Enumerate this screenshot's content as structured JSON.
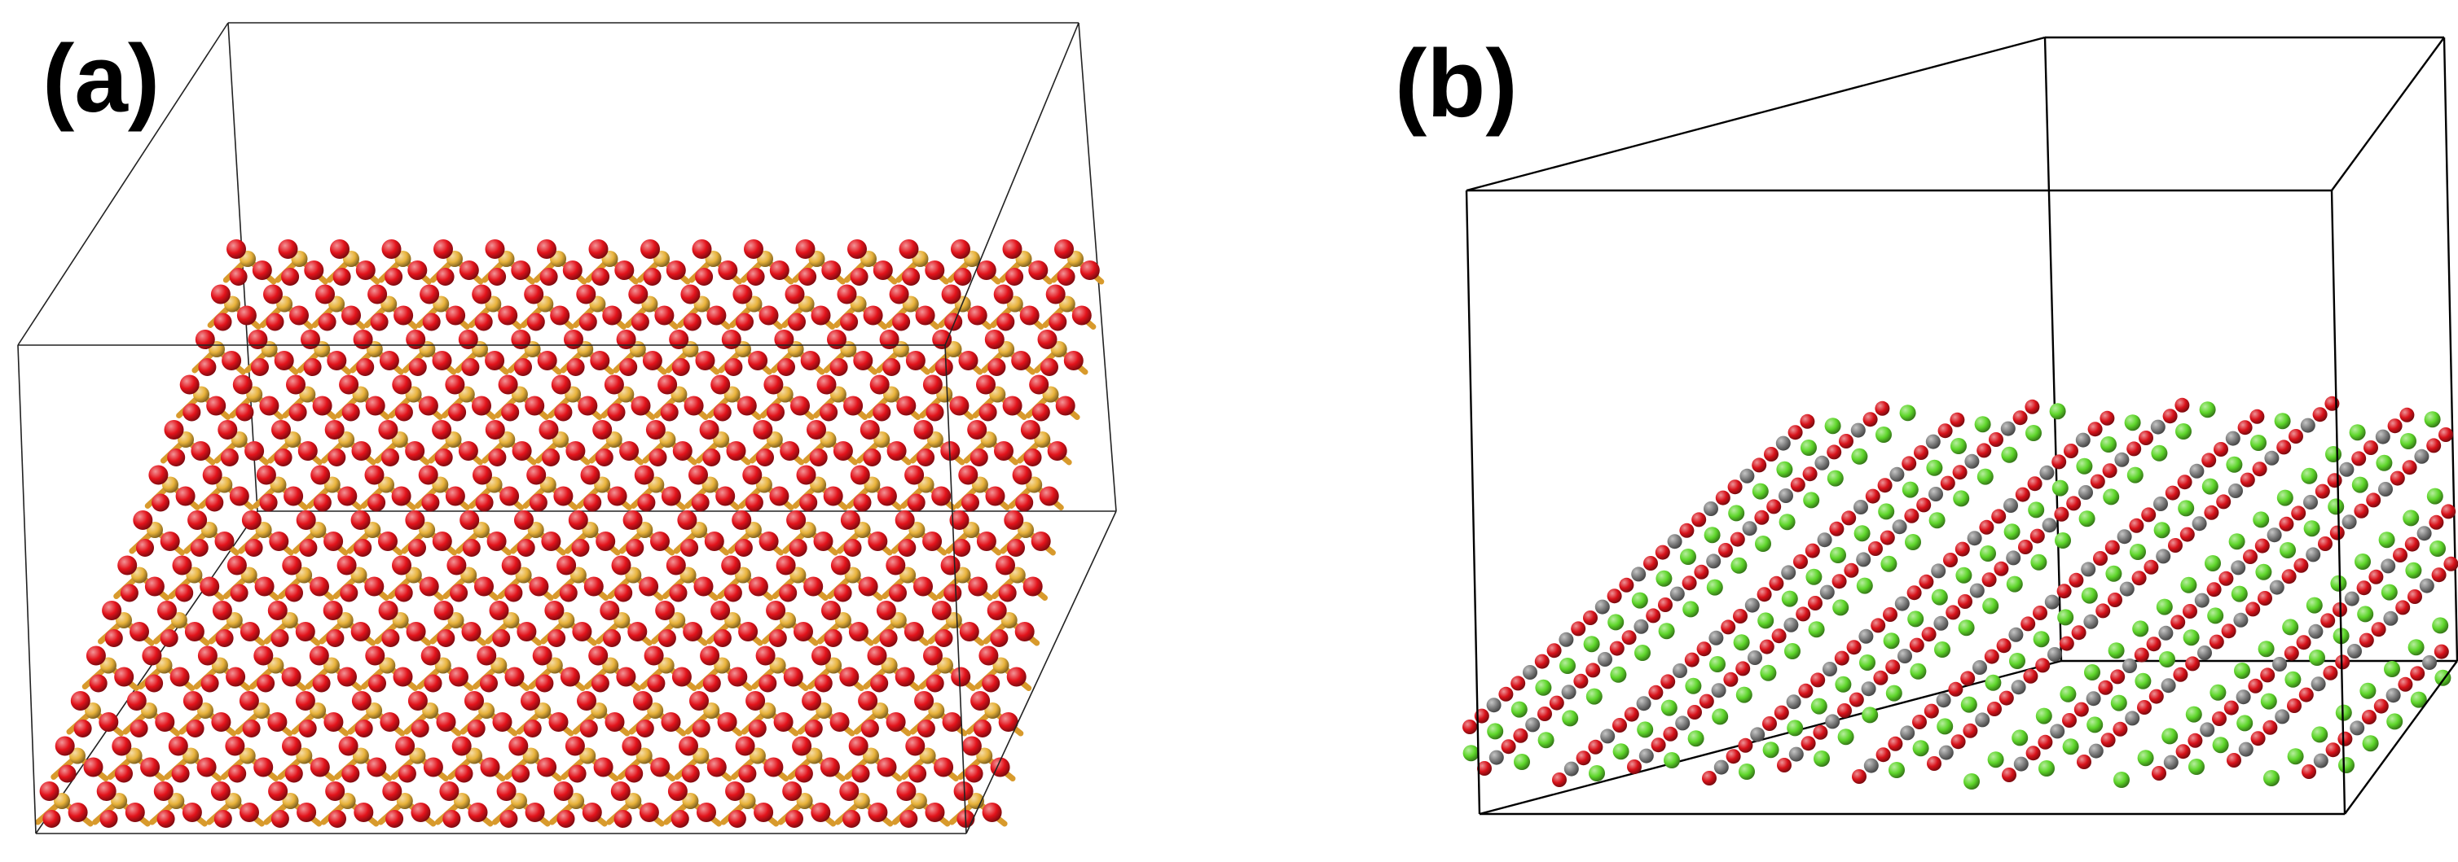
{
  "panels": [
    {
      "label": "(a)",
      "structure": "framework-slab",
      "colors": {
        "cell_edge": "#222222",
        "atom_primary": "#e3131b",
        "atom_secondary": "#e8b23a",
        "bond": "#d89a2c"
      }
    },
    {
      "label": "(b)",
      "structure": "linear-molecule-layers",
      "colors": {
        "cell_edge": "#000000",
        "atom_primary": "#d8121a",
        "atom_secondary": "#5ed62a",
        "atom_tertiary": "#7d7d7d"
      }
    }
  ]
}
